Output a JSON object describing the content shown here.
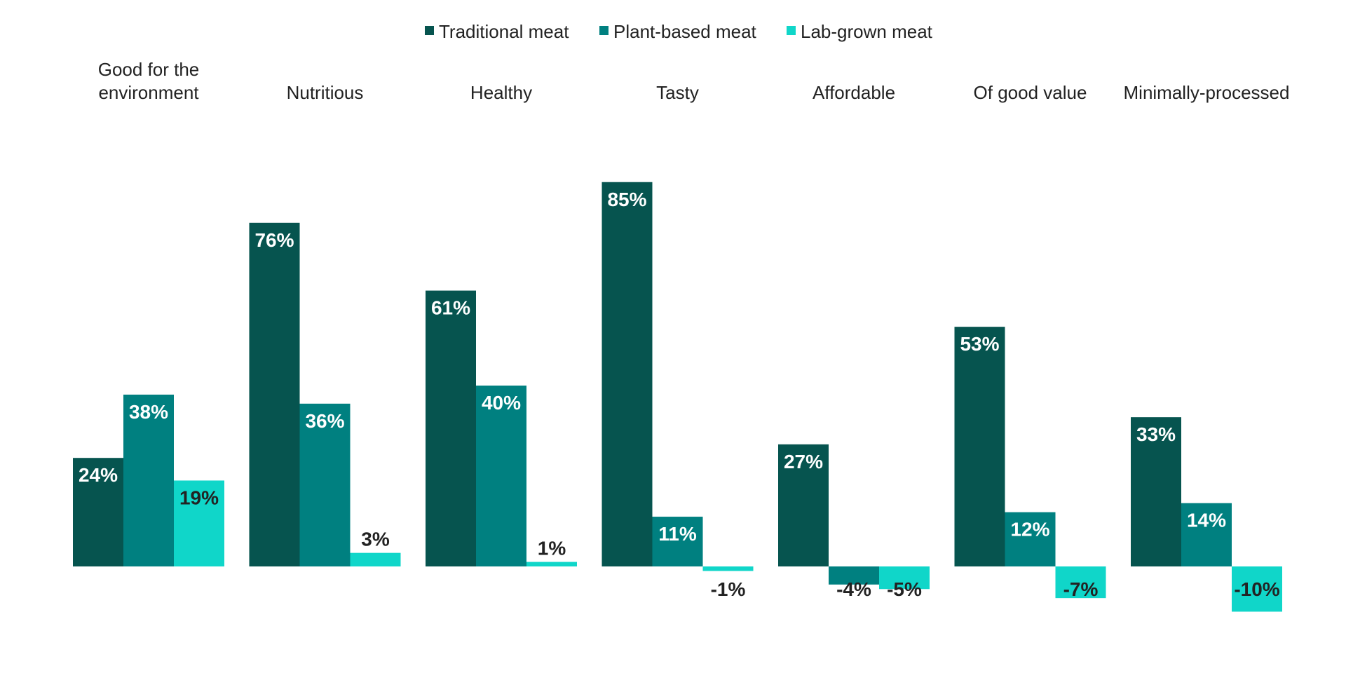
{
  "chart_data": {
    "type": "bar",
    "categories": [
      [
        "Good for the",
        "environment"
      ],
      [
        "Nutritious"
      ],
      [
        "Healthy"
      ],
      [
        "Tasty"
      ],
      [
        "Affordable"
      ],
      [
        "Of good value"
      ],
      [
        "Minimally-processed"
      ]
    ],
    "series": [
      {
        "name": "Traditional meat",
        "color": "#06544f",
        "values": [
          24,
          76,
          61,
          85,
          27,
          53,
          33
        ]
      },
      {
        "name": "Plant-based meat",
        "color": "#008080",
        "values": [
          38,
          36,
          40,
          11,
          -4,
          12,
          14
        ]
      },
      {
        "name": "Lab-grown meat",
        "color": "#10d6c9",
        "values": [
          19,
          3,
          1,
          -1,
          -5,
          -7,
          -10
        ]
      }
    ],
    "value_suffix": "%",
    "legend_position": "top-center",
    "grid": false
  }
}
